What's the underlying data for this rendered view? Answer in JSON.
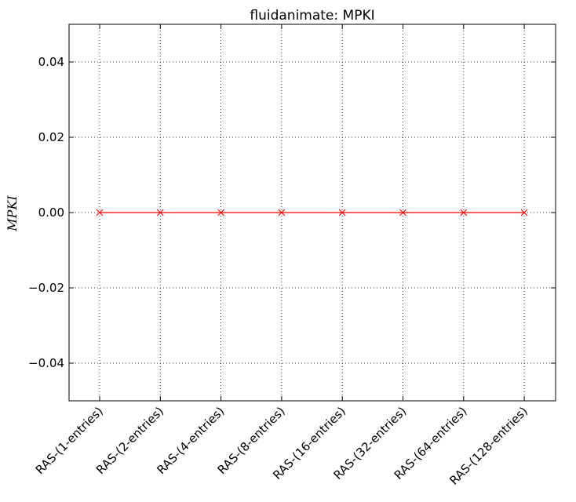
{
  "chart_data": {
    "type": "line",
    "title": "fluidanimate: MPKI",
    "xlabel": "",
    "ylabel": "MPKI",
    "categories": [
      "RAS-(1-entries)",
      "RAS-(2-entries)",
      "RAS-(4-entries)",
      "RAS-(8-entries)",
      "RAS-(16-entries)",
      "RAS-(32-entries)",
      "RAS-(64-entries)",
      "RAS-(128-entries)"
    ],
    "series": [
      {
        "values": [
          0,
          0,
          0,
          0,
          0,
          0,
          0,
          0
        ],
        "color": "#ff0000",
        "marker": "x"
      }
    ],
    "ylim": [
      -0.05,
      0.05
    ],
    "yticks": [
      -0.04,
      -0.02,
      0.0,
      0.02,
      0.04
    ],
    "ytick_labels": [
      "−0.04",
      "−0.02",
      "0.00",
      "0.02",
      "0.04"
    ],
    "grid": true,
    "xtick_rotation_deg": 45
  }
}
